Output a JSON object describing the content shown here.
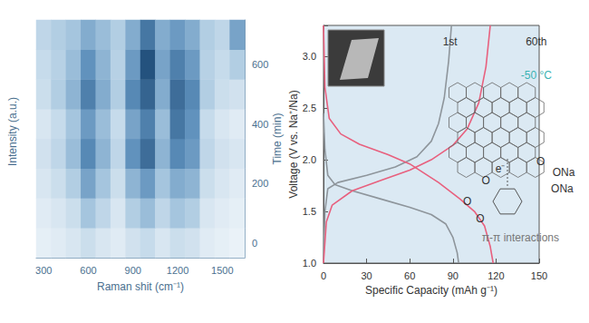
{
  "chart_data": [
    {
      "type": "heatmap",
      "x_label": "Raman shit (cm⁻¹)",
      "y_label": "Time (min)",
      "z_label": "Intensity (a.u.)",
      "categories": [
        "300",
        null,
        null,
        "600",
        null,
        null,
        "900",
        null,
        null,
        "1200",
        null,
        null,
        "1500",
        null
      ],
      "y_categories": [
        "0",
        null,
        "200",
        null,
        "400",
        null,
        "600",
        null
      ],
      "zlim": [
        0,
        1
      ],
      "cells": [
        [
          0.1,
          0.12,
          0.15,
          0.2,
          0.15,
          0.12,
          0.18,
          0.22,
          0.15,
          0.2,
          0.18,
          0.12,
          0.1,
          0.08
        ],
        [
          0.12,
          0.15,
          0.2,
          0.35,
          0.25,
          0.15,
          0.3,
          0.4,
          0.25,
          0.35,
          0.3,
          0.15,
          0.12,
          0.1
        ],
        [
          0.15,
          0.2,
          0.3,
          0.55,
          0.35,
          0.2,
          0.45,
          0.6,
          0.35,
          0.5,
          0.45,
          0.2,
          0.15,
          0.12
        ],
        [
          0.18,
          0.25,
          0.4,
          0.7,
          0.45,
          0.25,
          0.65,
          0.85,
          0.45,
          0.7,
          0.6,
          0.25,
          0.18,
          0.15
        ],
        [
          0.15,
          0.22,
          0.35,
          0.6,
          0.4,
          0.22,
          0.55,
          0.75,
          0.4,
          0.8,
          0.65,
          0.22,
          0.15,
          0.12
        ],
        [
          0.2,
          0.3,
          0.45,
          0.75,
          0.5,
          0.3,
          0.7,
          0.9,
          0.5,
          0.85,
          0.7,
          0.3,
          0.2,
          0.18
        ],
        [
          0.22,
          0.28,
          0.4,
          0.65,
          0.45,
          0.28,
          0.6,
          1.0,
          0.55,
          0.75,
          0.6,
          0.28,
          0.22,
          0.3
        ],
        [
          0.25,
          0.3,
          0.35,
          0.5,
          0.4,
          0.3,
          0.5,
          0.8,
          0.5,
          0.6,
          0.5,
          0.3,
          0.25,
          0.55
        ]
      ]
    },
    {
      "type": "line",
      "x_label": "Specific Capacity (mAh g⁻¹)",
      "y_label": "Voltage (V vs. Na⁺/Na)",
      "xlim": [
        0,
        150
      ],
      "xticks": [
        0,
        30,
        60,
        90,
        120,
        150
      ],
      "ylim": [
        1.0,
        3.3
      ],
      "yticks": [
        {
          "value": 1.0,
          "label": "1.0"
        },
        {
          "value": 1.5,
          "label": "1.5"
        },
        {
          "value": 2.0,
          "label": "2.0"
        },
        {
          "value": 2.5,
          "label": "2.5"
        },
        {
          "value": 3.0,
          "label": "3.0"
        }
      ],
      "series": [
        {
          "name": "1st",
          "color": "#8e959b",
          "label_x": 88,
          "label_y": 3.14,
          "discharge": [
            [
              0,
              2.45
            ],
            [
              1,
              2.1
            ],
            [
              3,
              1.85
            ],
            [
              8,
              1.76
            ],
            [
              20,
              1.7
            ],
            [
              40,
              1.62
            ],
            [
              60,
              1.54
            ],
            [
              75,
              1.47
            ],
            [
              85,
              1.38
            ],
            [
              90,
              1.25
            ],
            [
              93,
              1.1
            ],
            [
              94,
              1.0
            ]
          ],
          "charge": [
            [
              0,
              1.02
            ],
            [
              1,
              1.5
            ],
            [
              3,
              1.72
            ],
            [
              10,
              1.78
            ],
            [
              30,
              1.85
            ],
            [
              50,
              1.93
            ],
            [
              65,
              2.03
            ],
            [
              75,
              2.18
            ],
            [
              80,
              2.35
            ],
            [
              84,
              2.6
            ],
            [
              87,
              2.95
            ],
            [
              89,
              3.3
            ]
          ]
        },
        {
          "name": "60th",
          "color": "#e8607e",
          "label_x": 148,
          "label_y": 3.14,
          "discharge": [
            [
              0,
              3.3
            ],
            [
              1,
              2.7
            ],
            [
              4,
              2.4
            ],
            [
              12,
              2.25
            ],
            [
              25,
              2.15
            ],
            [
              45,
              2.05
            ],
            [
              60,
              1.96
            ],
            [
              80,
              1.78
            ],
            [
              95,
              1.62
            ],
            [
              105,
              1.5
            ],
            [
              112,
              1.36
            ],
            [
              116,
              1.16
            ],
            [
              118,
              1.0
            ]
          ],
          "charge": [
            [
              0,
              1.0
            ],
            [
              2,
              1.4
            ],
            [
              6,
              1.56
            ],
            [
              20,
              1.7
            ],
            [
              40,
              1.8
            ],
            [
              60,
              1.9
            ],
            [
              75,
              2.0
            ],
            [
              90,
              2.14
            ],
            [
              100,
              2.3
            ],
            [
              108,
              2.55
            ],
            [
              113,
              2.9
            ],
            [
              116,
              3.3
            ]
          ]
        }
      ],
      "annotations": [
        {
          "text": "-50 °C",
          "x": 148,
          "y": 2.82,
          "color": "#3bb3b3"
        },
        {
          "text": "O",
          "x": 151,
          "y": 1.98,
          "color": "#333333"
        },
        {
          "text": "e⁻",
          "x": 123,
          "y": 1.91,
          "color": "#333333"
        },
        {
          "text": "O",
          "x": 113,
          "y": 1.8,
          "color": "#333333"
        },
        {
          "text": "ONa",
          "x": 167,
          "y": 1.88,
          "color": "#333333"
        },
        {
          "text": "ONa",
          "x": 166,
          "y": 1.72,
          "color": "#333333"
        },
        {
          "text": "O",
          "x": 100,
          "y": 1.6,
          "color": "#333333"
        },
        {
          "text": "O",
          "x": 109,
          "y": 1.43,
          "color": "#333333"
        },
        {
          "text": "π-π interactions",
          "x": 137,
          "y": 1.25,
          "color": "#777777"
        }
      ]
    }
  ]
}
